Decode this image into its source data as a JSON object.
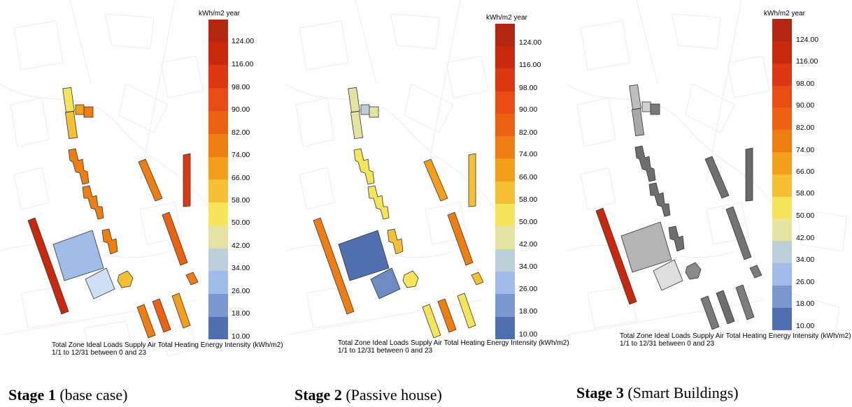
{
  "legend": {
    "unit": "kWh/m2 year",
    "ticks": [
      "124.00",
      "116.00",
      "98.00",
      "90.00",
      "82.00",
      "74.00",
      "66.00",
      "58.00",
      "50.00",
      "42.00",
      "34.00",
      "26.00",
      "18.00",
      "10.00"
    ],
    "colors": [
      "#b32610",
      "#c8290d",
      "#dd3812",
      "#e84c14",
      "#ec6112",
      "#ef7e12",
      "#f39f1c",
      "#f5c035",
      "#f6e45a",
      "#e4e3a2",
      "#bccfdb",
      "#a0bce9",
      "#7a97cf",
      "#4f6fae"
    ]
  },
  "caption": {
    "line1": "Total Zone Ideal Loads Supply Air Total Heating Energy Intensity (kWh/m2)",
    "line2": "1/1 to 12/31 between 0 and 23"
  },
  "stages": [
    {
      "bold": "Stage 1",
      "rest": " (base case)"
    },
    {
      "bold": "Stage 2",
      "rest": " (Passive house)"
    },
    {
      "bold": "Stage 3",
      "rest": " (Smart Buildings)"
    }
  ]
}
